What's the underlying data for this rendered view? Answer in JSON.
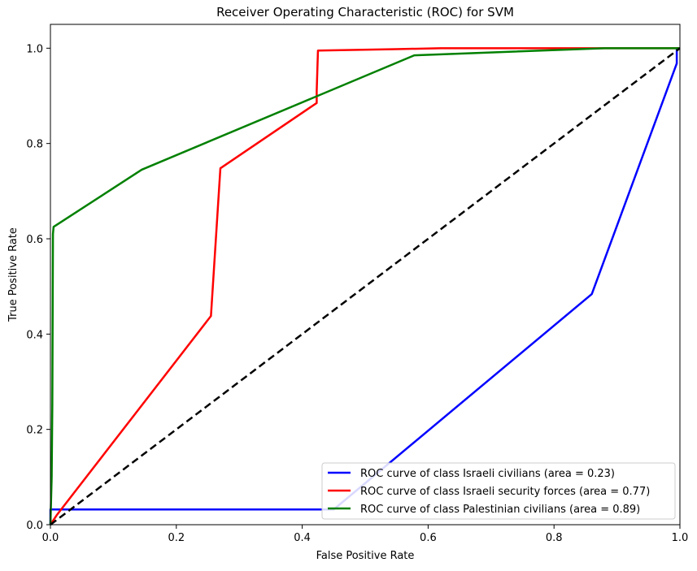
{
  "chart_data": {
    "type": "line",
    "title": "Receiver Operating Characteristic (ROC) for SVM",
    "xlabel": "False Positive Rate",
    "ylabel": "True Positive Rate",
    "xlim": [
      0,
      1
    ],
    "ylim": [
      0,
      1.05
    ],
    "x_ticks": [
      0.0,
      0.2,
      0.4,
      0.6,
      0.8,
      1.0
    ],
    "x_tick_labels": [
      "0.0",
      "0.2",
      "0.4",
      "0.6",
      "0.8",
      "1.0"
    ],
    "y_ticks": [
      0.0,
      0.2,
      0.4,
      0.6,
      0.8,
      1.0
    ],
    "y_tick_labels": [
      "0.0",
      "0.2",
      "0.4",
      "0.6",
      "0.8",
      "1.0"
    ],
    "grid": false,
    "legend_position": "lower-right",
    "series": [
      {
        "name": "ROC curve of class Israeli civilians (area = 0.23)",
        "color": "#0000ff",
        "x": [
          0.0,
          0.0,
          0.45,
          0.86,
          0.995,
          0.995,
          1.0
        ],
        "y": [
          0.0,
          0.032,
          0.032,
          0.484,
          0.968,
          1.0,
          1.0
        ]
      },
      {
        "name": "ROC curve of class Israeli security forces (area = 0.77)",
        "color": "#ff0000",
        "x": [
          0.0,
          0.01,
          0.255,
          0.27,
          0.423,
          0.423,
          0.425,
          0.55,
          0.62,
          0.85,
          1.0
        ],
        "y": [
          0.0,
          0.02,
          0.438,
          0.748,
          0.885,
          0.91,
          0.995,
          0.998,
          1.0,
          1.0,
          1.0
        ]
      },
      {
        "name": "ROC curve of class Palestinian civilians (area = 0.89)",
        "color": "#008000",
        "x": [
          0.0,
          0.002,
          0.003,
          0.004,
          0.005,
          0.145,
          0.578,
          0.88,
          1.0
        ],
        "y": [
          0.0,
          0.1,
          0.25,
          0.61,
          0.625,
          0.745,
          0.985,
          1.0,
          1.0
        ]
      },
      {
        "name": "",
        "color": "#000000",
        "dashed": true,
        "x": [
          0.0,
          1.0
        ],
        "y": [
          0.0,
          1.0
        ]
      }
    ]
  }
}
